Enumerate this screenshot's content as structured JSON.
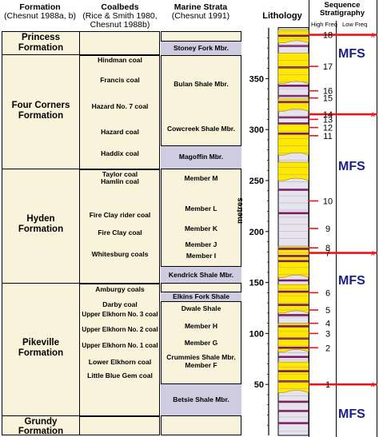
{
  "headers": {
    "formation": [
      "Formation",
      "(Chesnut 1988a, b)"
    ],
    "coalbeds": [
      "Coalbeds",
      "(Rice & Smith 1980,",
      "Chesnut 1988b)"
    ],
    "marine": [
      "Marine Strata",
      "(Chesnut 1991)"
    ],
    "lithology": "Lithology",
    "sequence": [
      "Sequence",
      "Stratigraphy"
    ],
    "high_freq": "High Freq",
    "low_freq": "Low Freq"
  },
  "formations": [
    {
      "name": [
        "Princess",
        "Formation"
      ]
    },
    {
      "name": [
        "Four Corners",
        "Formation"
      ]
    },
    {
      "name": [
        "Hyden",
        "Formation"
      ]
    },
    {
      "name": [
        "Pikeville",
        "Formation"
      ]
    },
    {
      "name": [
        "Grundy",
        "Formation"
      ]
    }
  ],
  "coalbeds": [
    "Hindman coal",
    "Francis coal",
    "Hazard No. 7 coal",
    "Hazard coal",
    "Haddix coal",
    "Taylor coal",
    "Hamlin coal",
    "Fire Clay rider coal",
    "Fire Clay coal",
    "Whitesburg coals",
    "Amburgy coals",
    "Darby coal",
    "Upper Elkhorn No. 3 coal",
    "Upper Elkhorn No. 2 coal",
    "Upper Elkhorn No. 1 coal",
    "Lower Elkhorn coal",
    "Little Blue Gem coal"
  ],
  "marine_units": [
    {
      "name": "Stoney Fork Mbr.",
      "shaded": true
    },
    {
      "name": "Bulan Shale Mbr.",
      "shaded": false
    },
    {
      "name": "Cowcreek Shale Mbr.",
      "shaded": false
    },
    {
      "name": "Magoffin Mbr.",
      "shaded": true
    },
    {
      "name": "Member M",
      "shaded": false
    },
    {
      "name": "Member L",
      "shaded": false
    },
    {
      "name": "Member K",
      "shaded": false
    },
    {
      "name": "Member J",
      "shaded": false
    },
    {
      "name": "Member I",
      "shaded": false
    },
    {
      "name": "Kendrick Shale Mbr.",
      "shaded": true
    },
    {
      "name": "Elkins Fork Shale",
      "shaded": true
    },
    {
      "name": "Dwale Shale",
      "shaded": false
    },
    {
      "name": "Member H",
      "shaded": false
    },
    {
      "name": "Member G",
      "shaded": false
    },
    {
      "name": "Crummies Shale Mbr.",
      "shaded": false
    },
    {
      "name": "Member F",
      "shaded": false
    },
    {
      "name": "Betsie Shale Mbr.",
      "shaded": true
    }
  ],
  "depth_axis": {
    "label": "metres",
    "min": 0,
    "max": 400,
    "ticks": [
      50,
      100,
      150,
      200,
      250,
      300,
      350
    ]
  },
  "sequences": [
    {
      "num": "1",
      "depth": 50,
      "mfs": true
    },
    {
      "num": "2",
      "depth": 86
    },
    {
      "num": "3",
      "depth": 100
    },
    {
      "num": "4",
      "depth": 110
    },
    {
      "num": "5",
      "depth": 123
    },
    {
      "num": "6",
      "depth": 140
    },
    {
      "num": "7",
      "depth": 179,
      "mfs": true
    },
    {
      "num": "8",
      "depth": 184
    },
    {
      "num": "9",
      "depth": 203
    },
    {
      "num": "10",
      "depth": 230
    },
    {
      "num": "11",
      "depth": 294
    },
    {
      "num": "12",
      "depth": 302
    },
    {
      "num": "13",
      "depth": 310
    },
    {
      "num": "14",
      "depth": 315,
      "mfs": true
    },
    {
      "num": "15",
      "depth": 331
    },
    {
      "num": "16",
      "depth": 338
    },
    {
      "num": "17",
      "depth": 362
    },
    {
      "num": "18",
      "depth": 393,
      "mfs": true
    }
  ],
  "low_freq_labels": [
    "MFS",
    "MFS",
    "MFS",
    "MFS"
  ],
  "star": "*",
  "colors": {
    "panel": "#f8f3da",
    "shaded": "#cfcbe0",
    "coal": "#7a1d5c",
    "sand": "#ffe800",
    "mfs_line": "#e8141c",
    "mfs_text": "#1c1e8c"
  }
}
